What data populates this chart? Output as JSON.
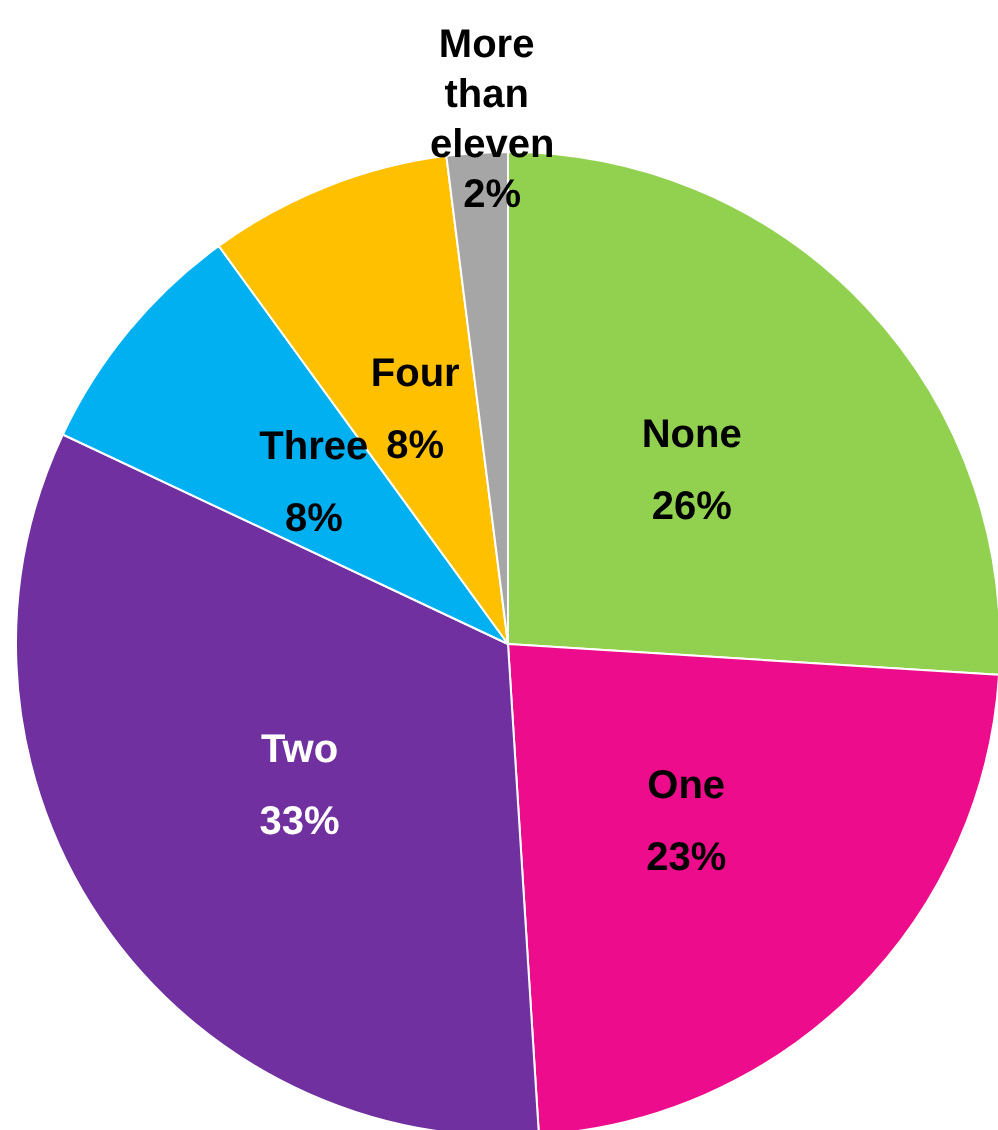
{
  "chart_data": {
    "type": "pie",
    "categories": [
      "None",
      "One",
      "Two",
      "Three",
      "Four",
      "More than eleven"
    ],
    "values": [
      26,
      23,
      33,
      8,
      8,
      2
    ],
    "value_labels": [
      "26%",
      "23%",
      "33%",
      "8%",
      "8%",
      "2%"
    ],
    "colors": [
      "#92d050",
      "#ec0c8c",
      "#7030a0",
      "#00b0f0",
      "#ffc000",
      "#a6a6a6"
    ],
    "legend": false
  }
}
